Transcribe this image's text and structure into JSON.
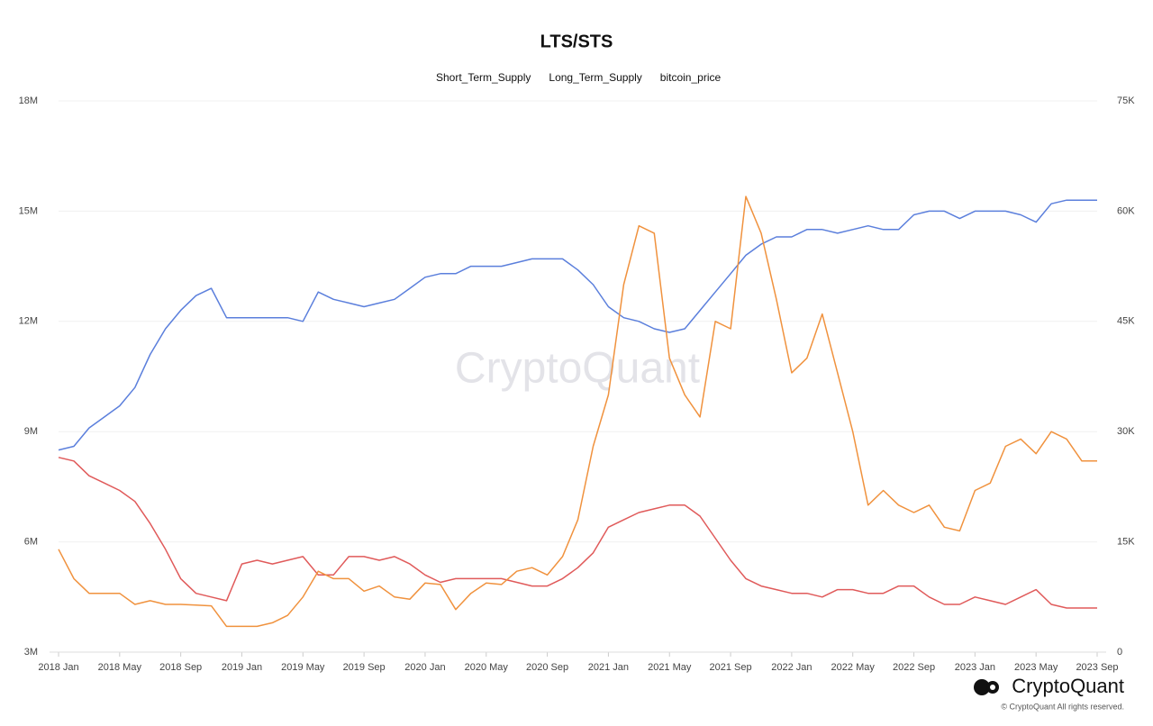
{
  "chart_data": {
    "type": "line",
    "title": "LTS/STS",
    "x": [
      "2018-01",
      "2018-02",
      "2018-03",
      "2018-04",
      "2018-05",
      "2018-06",
      "2018-07",
      "2018-08",
      "2018-09",
      "2018-10",
      "2018-11",
      "2018-12",
      "2019-01",
      "2019-02",
      "2019-03",
      "2019-04",
      "2019-05",
      "2019-06",
      "2019-07",
      "2019-08",
      "2019-09",
      "2019-10",
      "2019-11",
      "2019-12",
      "2020-01",
      "2020-02",
      "2020-03",
      "2020-04",
      "2020-05",
      "2020-06",
      "2020-07",
      "2020-08",
      "2020-09",
      "2020-10",
      "2020-11",
      "2020-12",
      "2021-01",
      "2021-02",
      "2021-03",
      "2021-04",
      "2021-05",
      "2021-06",
      "2021-07",
      "2021-08",
      "2021-09",
      "2021-10",
      "2021-11",
      "2021-12",
      "2022-01",
      "2022-02",
      "2022-03",
      "2022-04",
      "2022-05",
      "2022-06",
      "2022-07",
      "2022-08",
      "2022-09",
      "2022-10",
      "2022-11",
      "2022-12",
      "2023-01",
      "2023-02",
      "2023-03",
      "2023-04",
      "2023-05",
      "2023-06",
      "2023-07",
      "2023-08",
      "2023-09"
    ],
    "series": [
      {
        "name": "Short_Term_Supply",
        "color": "#e05a5a",
        "axis": "y",
        "values": [
          8300000,
          8200000,
          7800000,
          7600000,
          7400000,
          7100000,
          6500000,
          5800000,
          5000000,
          4600000,
          4500000,
          4400000,
          5400000,
          5500000,
          5400000,
          5500000,
          5600000,
          5100000,
          5100000,
          5600000,
          5600000,
          5500000,
          5600000,
          5400000,
          5100000,
          4900000,
          5000000,
          5000000,
          5000000,
          5000000,
          4900000,
          4800000,
          4800000,
          5000000,
          5300000,
          5700000,
          6400000,
          6600000,
          6800000,
          6900000,
          7000000,
          7000000,
          6700000,
          6100000,
          5500000,
          5000000,
          4800000,
          4700000,
          4600000,
          4600000,
          4500000,
          4700000,
          4700000,
          4600000,
          4600000,
          4800000,
          4800000,
          4500000,
          4300000,
          4300000,
          4500000,
          4400000,
          4300000,
          4500000,
          4700000,
          4300000,
          4200000,
          4200000,
          4200000
        ]
      },
      {
        "name": "Long_Term_Supply",
        "color": "#5b7fdc",
        "axis": "y",
        "values": [
          8500000,
          8600000,
          9100000,
          9400000,
          9700000,
          10200000,
          11100000,
          11800000,
          12300000,
          12700000,
          12900000,
          12100000,
          12100000,
          12100000,
          12100000,
          12100000,
          12000000,
          12800000,
          12600000,
          12500000,
          12400000,
          12500000,
          12600000,
          12900000,
          13200000,
          13300000,
          13300000,
          13500000,
          13500000,
          13500000,
          13600000,
          13700000,
          13700000,
          13700000,
          13400000,
          13000000,
          12400000,
          12100000,
          12000000,
          11800000,
          11700000,
          11800000,
          12300000,
          12800000,
          13300000,
          13800000,
          14100000,
          14300000,
          14300000,
          14500000,
          14500000,
          14400000,
          14500000,
          14600000,
          14500000,
          14500000,
          14900000,
          15000000,
          15000000,
          14800000,
          15000000,
          15000000,
          15000000,
          14900000,
          14700000,
          15200000,
          15300000,
          15300000,
          15300000
        ]
      },
      {
        "name": "bitcoin_price",
        "color": "#f0923e",
        "axis": "y2",
        "values": [
          14000,
          10000,
          8000,
          8000,
          8000,
          6500,
          7000,
          6500,
          6500,
          6400,
          6300,
          3500,
          3500,
          3500,
          4000,
          5000,
          7500,
          11000,
          10000,
          10000,
          8300,
          9000,
          7500,
          7200,
          9400,
          9200,
          5800,
          8000,
          9400,
          9200,
          11000,
          11500,
          10500,
          13000,
          18000,
          28000,
          35000,
          50000,
          58000,
          57000,
          40000,
          35000,
          32000,
          45000,
          44000,
          62000,
          57000,
          48000,
          38000,
          40000,
          46000,
          38000,
          30000,
          20000,
          22000,
          20000,
          19000,
          20000,
          17000,
          16500,
          22000,
          23000,
          28000,
          29000,
          27000,
          30000,
          29000,
          26000,
          26000
        ]
      }
    ],
    "ylim": [
      3000000,
      18000000
    ],
    "yticks": [
      {
        "value": 3000000,
        "label": "3M"
      },
      {
        "value": 6000000,
        "label": "6M"
      },
      {
        "value": 9000000,
        "label": "9M"
      },
      {
        "value": 12000000,
        "label": "12M"
      },
      {
        "value": 15000000,
        "label": "15M"
      },
      {
        "value": 18000000,
        "label": "18M"
      }
    ],
    "y2lim": [
      0,
      75000
    ],
    "y2ticks": [
      0,
      {
        "value": 15000,
        "label": "15K"
      },
      {
        "value": 30000,
        "label": "30K"
      },
      {
        "value": 45000,
        "label": "45K"
      },
      {
        "value": 60000,
        "label": "60K"
      },
      {
        "value": 75000,
        "label": "75K"
      }
    ],
    "xticks": [
      {
        "value": "2018-01",
        "label": "2018 Jan"
      },
      {
        "value": "2018-05",
        "label": "2018 May"
      },
      {
        "value": "2018-09",
        "label": "2018 Sep"
      },
      {
        "value": "2019-01",
        "label": "2019 Jan"
      },
      {
        "value": "2019-05",
        "label": "2019 May"
      },
      {
        "value": "2019-09",
        "label": "2019 Sep"
      },
      {
        "value": "2020-01",
        "label": "2020 Jan"
      },
      {
        "value": "2020-05",
        "label": "2020 May"
      },
      {
        "value": "2020-09",
        "label": "2020 Sep"
      },
      {
        "value": "2021-01",
        "label": "2021 Jan"
      },
      {
        "value": "2021-05",
        "label": "2021 May"
      },
      {
        "value": "2021-09",
        "label": "2021 Sep"
      },
      {
        "value": "2022-01",
        "label": "2022 Jan"
      },
      {
        "value": "2022-05",
        "label": "2022 May"
      },
      {
        "value": "2022-09",
        "label": "2022 Sep"
      },
      {
        "value": "2023-01",
        "label": "2023 Jan"
      },
      {
        "value": "2023-05",
        "label": "2023 May"
      },
      {
        "value": "2023-09",
        "label": "2023 Sep"
      }
    ],
    "grid": true
  },
  "branding": {
    "watermark": "CryptoQuant",
    "logo": "CryptoQuant",
    "copyright": "© CryptoQuant All rights reserved."
  }
}
